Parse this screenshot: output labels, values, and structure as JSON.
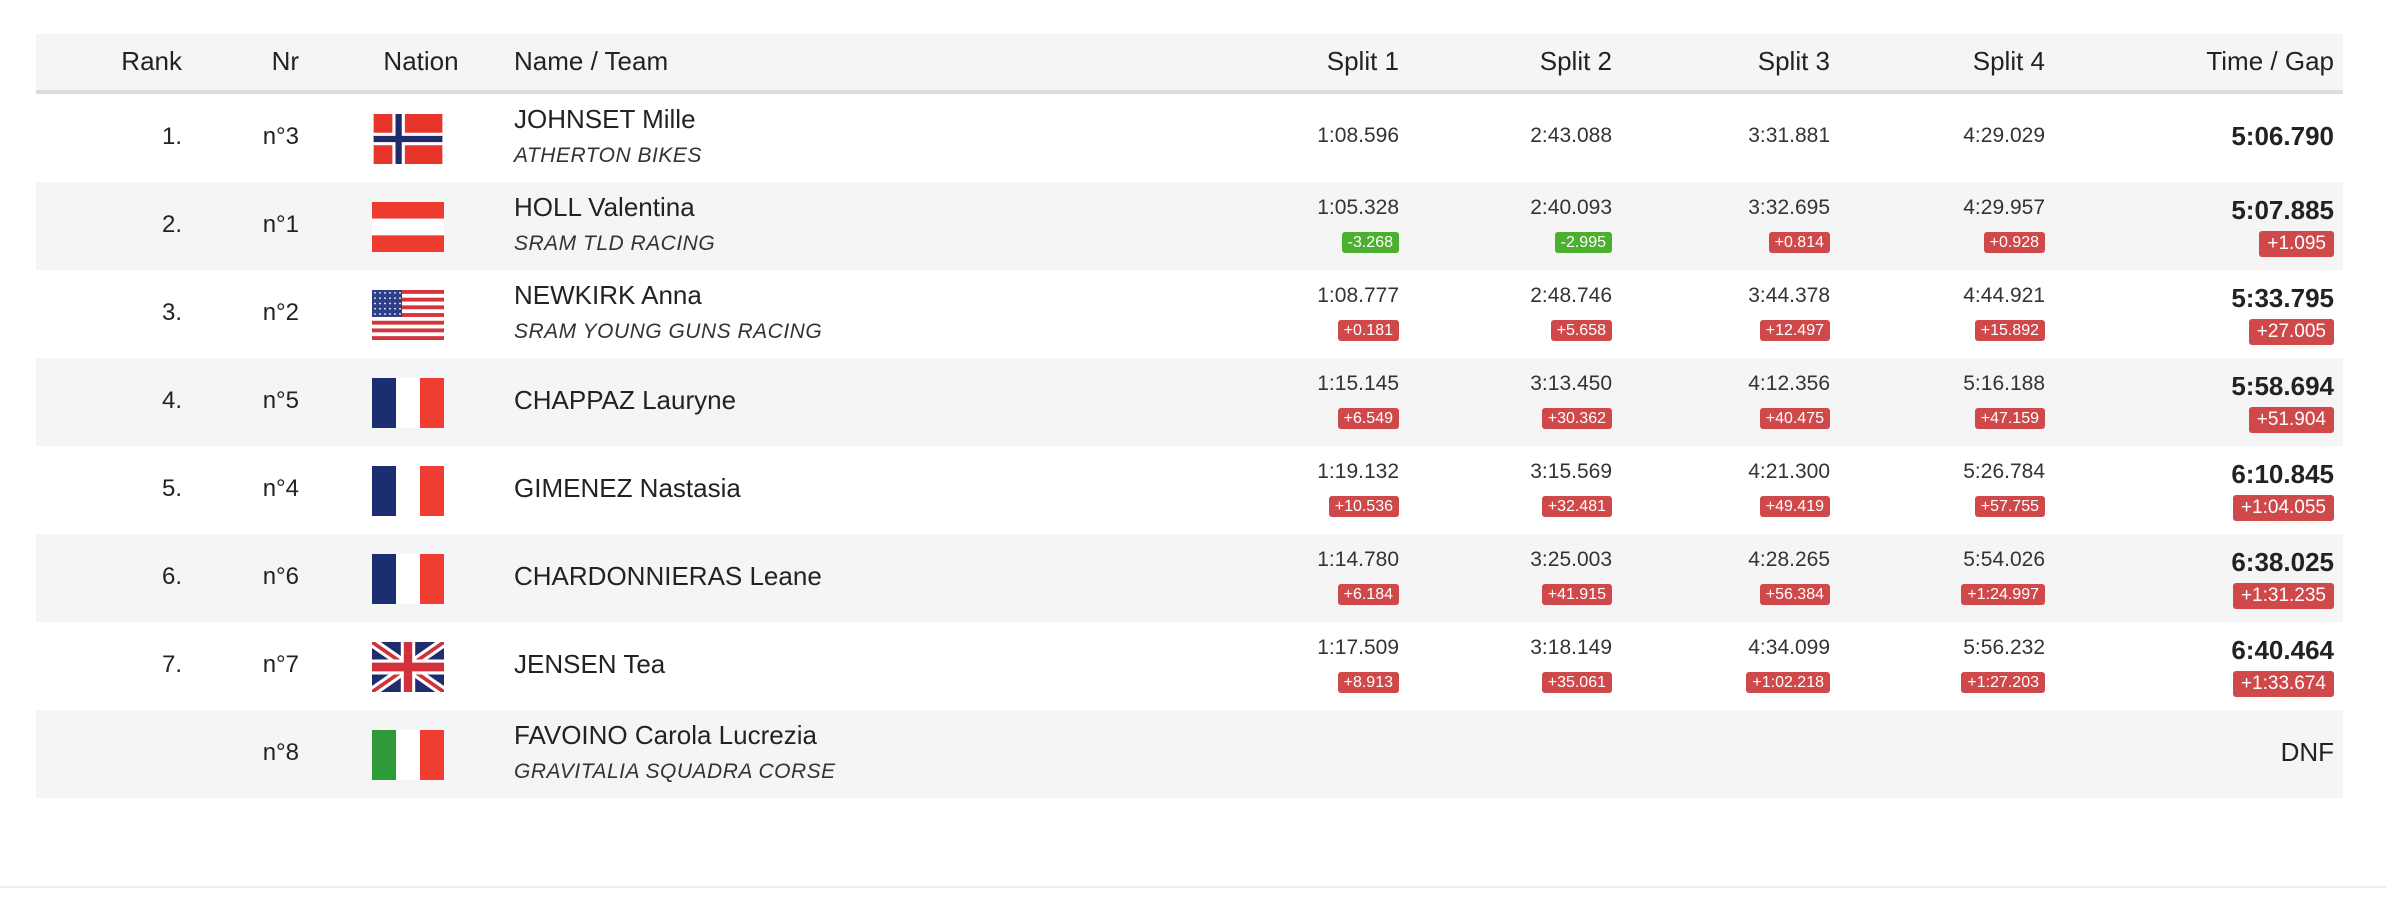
{
  "headers": {
    "rank": "Rank",
    "nr": "Nr",
    "nation": "Nation",
    "name": "Name / Team",
    "split1": "Split 1",
    "split2": "Split 2",
    "split3": "Split 3",
    "split4": "Split 4",
    "time": "Time / Gap"
  },
  "colors": {
    "header_bg": "#f5f5f5",
    "alt_row_bg": "#f5f5f5",
    "gap_negative": "#4caf2f",
    "gap_positive": "#d0494a"
  },
  "rows": [
    {
      "rank": "1.",
      "nr": "n°3",
      "nation": "NOR",
      "flag_icon": "flag-norway-icon",
      "name": "JOHNSET Mille",
      "team": "ATHERTON BIKES",
      "s1": "1:08.596",
      "s1g": "",
      "s2": "2:43.088",
      "s2g": "",
      "s3": "3:31.881",
      "s3g": "",
      "s4": "4:29.029",
      "s4g": "",
      "time": "5:06.790",
      "gap": ""
    },
    {
      "rank": "2.",
      "nr": "n°1",
      "nation": "AUT",
      "flag_icon": "flag-austria-icon",
      "name": "HOLL Valentina",
      "team": "SRAM TLD RACING",
      "s1": "1:05.328",
      "s1g": "-3.268",
      "s2": "2:40.093",
      "s2g": "-2.995",
      "s3": "3:32.695",
      "s3g": "+0.814",
      "s4": "4:29.957",
      "s4g": "+0.928",
      "time": "5:07.885",
      "gap": "+1.095"
    },
    {
      "rank": "3.",
      "nr": "n°2",
      "nation": "USA",
      "flag_icon": "flag-usa-icon",
      "name": "NEWKIRK Anna",
      "team": "SRAM YOUNG GUNS RACING",
      "s1": "1:08.777",
      "s1g": "+0.181",
      "s2": "2:48.746",
      "s2g": "+5.658",
      "s3": "3:44.378",
      "s3g": "+12.497",
      "s4": "4:44.921",
      "s4g": "+15.892",
      "time": "5:33.795",
      "gap": "+27.005"
    },
    {
      "rank": "4.",
      "nr": "n°5",
      "nation": "FRA",
      "flag_icon": "flag-france-icon",
      "name": "CHAPPAZ Lauryne",
      "team": "",
      "s1": "1:15.145",
      "s1g": "+6.549",
      "s2": "3:13.450",
      "s2g": "+30.362",
      "s3": "4:12.356",
      "s3g": "+40.475",
      "s4": "5:16.188",
      "s4g": "+47.159",
      "time": "5:58.694",
      "gap": "+51.904"
    },
    {
      "rank": "5.",
      "nr": "n°4",
      "nation": "FRA",
      "flag_icon": "flag-france-icon",
      "name": "GIMENEZ Nastasia",
      "team": "",
      "s1": "1:19.132",
      "s1g": "+10.536",
      "s2": "3:15.569",
      "s2g": "+32.481",
      "s3": "4:21.300",
      "s3g": "+49.419",
      "s4": "5:26.784",
      "s4g": "+57.755",
      "time": "6:10.845",
      "gap": "+1:04.055"
    },
    {
      "rank": "6.",
      "nr": "n°6",
      "nation": "FRA",
      "flag_icon": "flag-france-icon",
      "name": "CHARDONNIERAS Leane",
      "team": "",
      "s1": "1:14.780",
      "s1g": "+6.184",
      "s2": "3:25.003",
      "s2g": "+41.915",
      "s3": "4:28.265",
      "s3g": "+56.384",
      "s4": "5:54.026",
      "s4g": "+1:24.997",
      "time": "6:38.025",
      "gap": "+1:31.235"
    },
    {
      "rank": "7.",
      "nr": "n°7",
      "nation": "GBR",
      "flag_icon": "flag-uk-icon",
      "name": "JENSEN Tea",
      "team": "",
      "s1": "1:17.509",
      "s1g": "+8.913",
      "s2": "3:18.149",
      "s2g": "+35.061",
      "s3": "4:34.099",
      "s3g": "+1:02.218",
      "s4": "5:56.232",
      "s4g": "+1:27.203",
      "time": "6:40.464",
      "gap": "+1:33.674"
    },
    {
      "rank": "",
      "nr": "n°8",
      "nation": "ITA",
      "flag_icon": "flag-italy-icon",
      "name": "FAVOINO Carola Lucrezia",
      "team": "GRAVITALIA SQUADRA CORSE",
      "s1": "",
      "s1g": "",
      "s2": "",
      "s2g": "",
      "s3": "",
      "s3g": "",
      "s4": "",
      "s4g": "",
      "time": "DNF",
      "gap": ""
    }
  ]
}
